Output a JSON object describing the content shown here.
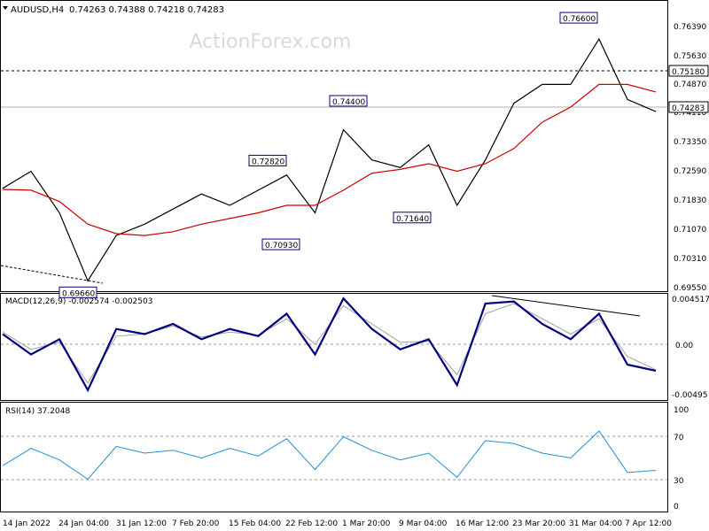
{
  "header": {
    "symbol": "AUDUSD,H4",
    "ohlc": "0.74263 0.74388 0.74218 0.74283"
  },
  "watermark": "ActionForex.com",
  "colors": {
    "price": "#000000",
    "ma": "#cc0000",
    "macd": "#000080",
    "signal": "#a0a0a0",
    "rsi": "#1f8fd0",
    "label_border": "#000080",
    "watermark": "#d9d9d9"
  },
  "price_panel": {
    "y_axis_labels": [
      "0.76390",
      "0.75630",
      "0.74870",
      "0.74110",
      "0.73350",
      "0.72590",
      "0.71830",
      "0.71070",
      "0.70310",
      "0.69550"
    ],
    "current_price_label": "0.74283",
    "resistance_label": "0.75180"
  },
  "annotations": [
    {
      "text": "0.76600",
      "value": 0.766,
      "x": "2022-04-04 00:00"
    },
    {
      "text": "0.74400",
      "value": 0.744,
      "x": "2022-03-01 00:00"
    },
    {
      "text": "0.72820",
      "value": 0.7282,
      "x": "2022-02-23 16:00"
    },
    {
      "text": "0.70930",
      "value": 0.7093,
      "x": "2022-02-24 12:00"
    },
    {
      "text": "0.71640",
      "value": 0.7164,
      "x": "2022-03-16 00:00"
    },
    {
      "text": "0.69660",
      "value": 0.6966,
      "x": "2022-01-28 00:00"
    }
  ],
  "macd_panel": {
    "title": "MACD(12,26,9) -0.002574 -0.002503",
    "y_axis_labels": [
      "0.004517",
      "0.00",
      "-0.00495"
    ]
  },
  "rsi_panel": {
    "title": "RSI(14) 37.2048",
    "y_axis_labels": [
      "100",
      "70",
      "30",
      "0"
    ]
  },
  "x_axis_labels": [
    "14 Jan 2022",
    "24 Jan 04:00",
    "31 Jan 12:00",
    "7 Feb 20:00",
    "15 Feb 04:00",
    "22 Feb 12:00",
    "1 Mar 20:00",
    "9 Mar 04:00",
    "16 Mar 12:00",
    "23 Mar 20:00",
    "31 Mar 04:00",
    "7 Apr 12:00"
  ],
  "chart_data": [
    {
      "type": "line",
      "title": "AUDUSD,H4",
      "x": [
        "14 Jan 2022",
        "19 Jan 2022",
        "24 Jan 04:00",
        "28 Jan 2022",
        "31 Jan 12:00",
        "4 Feb 2022",
        "7 Feb 20:00",
        "10 Feb 2022",
        "15 Feb 04:00",
        "18 Feb 2022",
        "22 Feb 12:00",
        "24 Feb 2022",
        "1 Mar 20:00",
        "4 Mar 2022",
        "9 Mar 04:00",
        "11 Mar 2022",
        "16 Mar 12:00",
        "18 Mar 2022",
        "23 Mar 20:00",
        "28 Mar 2022",
        "31 Mar 04:00",
        "4 Apr 2022",
        "7 Apr 12:00",
        "8 Apr 2022"
      ],
      "series": [
        {
          "values": [
            0.7225,
            0.727,
            0.716,
            0.698,
            0.71,
            0.713,
            0.717,
            0.721,
            0.718,
            0.722,
            0.726,
            0.716,
            0.738,
            0.73,
            0.728,
            0.734,
            0.718,
            0.73,
            0.745,
            0.75,
            0.75,
            0.762,
            0.746,
            0.7428
          ]
        },
        {
          "values": [
            0.7222,
            0.722,
            0.719,
            0.713,
            0.7105,
            0.71,
            0.711,
            0.713,
            0.7145,
            0.716,
            0.718,
            0.718,
            0.722,
            0.7265,
            0.7275,
            0.729,
            0.727,
            0.729,
            0.733,
            0.74,
            0.744,
            0.75,
            0.75,
            0.748
          ]
        }
      ],
      "ylim": [
        0.6955,
        0.77
      ]
    },
    {
      "type": "line",
      "title": "MACD(12,26,9) -0.002574 -0.002503",
      "x": [
        "14 Jan 2022",
        "19 Jan 2022",
        "24 Jan 04:00",
        "28 Jan 2022",
        "31 Jan 12:00",
        "4 Feb 2022",
        "7 Feb 20:00",
        "10 Feb 2022",
        "15 Feb 04:00",
        "18 Feb 2022",
        "22 Feb 12:00",
        "24 Feb 2022",
        "1 Mar 20:00",
        "4 Mar 2022",
        "9 Mar 04:00",
        "11 Mar 2022",
        "16 Mar 12:00",
        "18 Mar 2022",
        "23 Mar 20:00",
        "28 Mar 2022",
        "31 Mar 04:00",
        "4 Apr 2022",
        "7 Apr 12:00",
        "8 Apr 2022"
      ],
      "series": [
        {
          "values": [
            0.001,
            -0.001,
            0.0005,
            -0.0045,
            0.0015,
            0.001,
            0.002,
            0.0005,
            0.0015,
            0.0008,
            0.003,
            -0.001,
            0.0045,
            0.0015,
            -0.0005,
            0.0005,
            -0.004,
            0.004,
            0.0042,
            0.002,
            0.0005,
            0.003,
            -0.002,
            -0.0026
          ]
        },
        {
          "values": [
            0.0012,
            -0.0005,
            0.0002,
            -0.0038,
            0.0008,
            0.001,
            0.0018,
            0.0007,
            0.0012,
            0.0009,
            0.0025,
            0.0,
            0.0038,
            0.002,
            0.0002,
            0.0003,
            -0.003,
            0.003,
            0.004,
            0.0025,
            0.001,
            0.0025,
            -0.0012,
            -0.0025
          ]
        }
      ],
      "ylim": [
        -0.00495,
        0.004517
      ]
    },
    {
      "type": "line",
      "title": "RSI(14) 37.2048",
      "x": [
        "14 Jan 2022",
        "19 Jan 2022",
        "24 Jan 04:00",
        "28 Jan 2022",
        "31 Jan 12:00",
        "4 Feb 2022",
        "7 Feb 20:00",
        "10 Feb 2022",
        "15 Feb 04:00",
        "18 Feb 2022",
        "22 Feb 12:00",
        "24 Feb 2022",
        "1 Mar 20:00",
        "4 Mar 2022",
        "9 Mar 04:00",
        "11 Mar 2022",
        "16 Mar 12:00",
        "18 Mar 2022",
        "23 Mar 20:00",
        "28 Mar 2022",
        "31 Mar 04:00",
        "4 Apr 2022",
        "7 Apr 12:00",
        "8 Apr 2022"
      ],
      "series": [
        {
          "values": [
            42,
            60,
            48,
            28,
            62,
            55,
            58,
            50,
            60,
            52,
            70,
            38,
            72,
            58,
            48,
            55,
            30,
            68,
            65,
            55,
            50,
            78,
            35,
            37.2
          ]
        }
      ],
      "ylim": [
        0,
        100
      ]
    }
  ]
}
